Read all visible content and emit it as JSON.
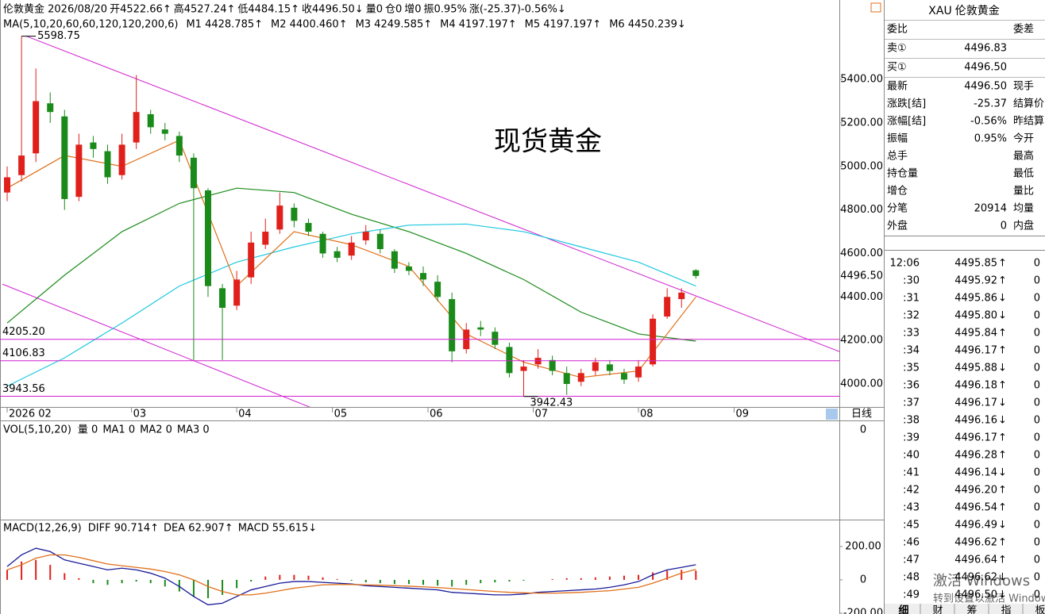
{
  "header": {
    "items": [
      {
        "text": "伦敦黄金 2026/08/20",
        "color": "#000000"
      },
      {
        "text": "开4522.66↑",
        "color": "#e0201b"
      },
      {
        "text": "高4527.24↑",
        "color": "#e0201b"
      },
      {
        "text": "低4484.15↑",
        "color": "#1a8a1a"
      },
      {
        "text": "收4496.50↓",
        "color": "#1a8a1a"
      },
      {
        "text": "量0",
        "color": "#000000"
      },
      {
        "text": "仓0",
        "color": "#000000"
      },
      {
        "text": "增0",
        "color": "#000000"
      },
      {
        "text": "振0.95%",
        "color": "#000000"
      },
      {
        "text": "涨(-25.37)-0.56%↓",
        "color": "#1a8a1a"
      }
    ],
    "ma_label": "MA(5,10,20,60,60,120,120,200,6)",
    "ma_items": [
      {
        "text": "M1 4428.785↑",
        "color": "#1a1a9a"
      },
      {
        "text": "M2 4400.460↑",
        "color": "#e0701b"
      },
      {
        "text": "M3 4249.585↑",
        "color": "#999999"
      },
      {
        "text": "M4 4197.197↑",
        "color": "#8b1a1a"
      },
      {
        "text": "M5 4197.197↑",
        "color": "#1a8a1a"
      },
      {
        "text": "M6 4450.239↓",
        "color": "#1ec8e0"
      }
    ]
  },
  "chart_data": [
    {
      "type": "candlestick",
      "watermark": "现货黄金",
      "period": "日线",
      "up_color": "#e0201b",
      "down_color": "#1a8a1a",
      "x": [
        0,
        3,
        6,
        9,
        12,
        15,
        18,
        21,
        24,
        27,
        30,
        33,
        36,
        39,
        42,
        45,
        48,
        51,
        54,
        57,
        60,
        63,
        66,
        69,
        72,
        75,
        78,
        81,
        84,
        87,
        90,
        93,
        96,
        99,
        102,
        105,
        108,
        111,
        114,
        117,
        120,
        123,
        126,
        129,
        132,
        135,
        138,
        141,
        144
      ],
      "open": [
        4880,
        4960,
        5060,
        5290,
        5230,
        4860,
        5110,
        5070,
        4960,
        5110,
        5240,
        5170,
        5140,
        5040,
        4890,
        4440,
        4360,
        4490,
        4640,
        4710,
        4810,
        4740,
        4690,
        4610,
        4590,
        4660,
        4690,
        4610,
        4540,
        4510,
        4470,
        4390,
        4160,
        4260,
        4240,
        4170,
        4060,
        4090,
        4110,
        4050,
        4010,
        4060,
        4090,
        4050,
        4030,
        4090,
        4310,
        4390,
        4522.66
      ],
      "high": [
        5000,
        5598.75,
        5450,
        5340,
        5260,
        5150,
        5140,
        5100,
        5150,
        5420,
        5260,
        5200,
        5160,
        5060,
        4900,
        4460,
        4520,
        4700,
        4760,
        4880,
        4830,
        4760,
        4700,
        4630,
        4680,
        4730,
        4710,
        4620,
        4560,
        4540,
        4500,
        4420,
        4280,
        4290,
        4260,
        4190,
        4110,
        4160,
        4130,
        4080,
        4070,
        4120,
        4110,
        4070,
        4110,
        4320,
        4440,
        4440,
        4527.24
      ],
      "low": [
        4840,
        4930,
        5020,
        5200,
        4800,
        4840,
        5040,
        4920,
        4940,
        5080,
        5150,
        5120,
        5020,
        4110,
        4400,
        4110,
        4340,
        4460,
        4620,
        4690,
        4720,
        4680,
        4580,
        4560,
        4570,
        4640,
        4600,
        4510,
        4500,
        4450,
        4380,
        4100,
        4140,
        4220,
        4160,
        4030,
        3942.43,
        4070,
        4040,
        3950,
        3990,
        4040,
        4040,
        4000,
        4010,
        4080,
        4300,
        4350,
        4484.15
      ],
      "close": [
        4950,
        5050,
        5300,
        5250,
        4850,
        5100,
        5080,
        4950,
        5100,
        5250,
        5180,
        5150,
        5050,
        4900,
        4450,
        4350,
        4480,
        4650,
        4700,
        4820,
        4750,
        4700,
        4600,
        4580,
        4650,
        4700,
        4620,
        4530,
        4520,
        4480,
        4400,
        4150,
        4250,
        4250,
        4180,
        4050,
        4080,
        4120,
        4060,
        4000,
        4050,
        4100,
        4060,
        4020,
        4080,
        4300,
        4400,
        4420,
        4496.5
      ],
      "series": [
        {
          "color": "#1a8a1a",
          "x": [
            0,
            12,
            24,
            36,
            48,
            60,
            72,
            84,
            96,
            108,
            120,
            132,
            144
          ],
          "values": [
            4280,
            4500,
            4700,
            4830,
            4900,
            4880,
            4780,
            4700,
            4600,
            4480,
            4330,
            4230,
            4197
          ]
        },
        {
          "color": "#1ec8e0",
          "x": [
            0,
            12,
            24,
            36,
            48,
            60,
            72,
            84,
            96,
            108,
            120,
            132,
            144
          ],
          "values": [
            3990,
            4120,
            4280,
            4450,
            4560,
            4630,
            4690,
            4730,
            4735,
            4700,
            4630,
            4560,
            4450
          ]
        },
        {
          "color": "#e0701b",
          "x": [
            0,
            12,
            24,
            36,
            48,
            60,
            72,
            84,
            96,
            108,
            120,
            132,
            144
          ],
          "values": [
            4900,
            5050,
            5000,
            5120,
            4450,
            4700,
            4640,
            4540,
            4230,
            4100,
            4030,
            4060,
            4400
          ]
        }
      ],
      "xlim": [
        -1,
        174
      ],
      "xticks": [
        {
          "value": 0,
          "label": "2026 02"
        },
        {
          "value": 26,
          "label": "03"
        },
        {
          "value": 48,
          "label": "04"
        },
        {
          "value": 68,
          "label": "05"
        },
        {
          "value": 88,
          "label": "06"
        },
        {
          "value": 110,
          "label": "07"
        },
        {
          "value": 132,
          "label": "08"
        },
        {
          "value": 152,
          "label": "09"
        }
      ],
      "ylim": [
        3887,
        5692
      ],
      "yticks": [
        {
          "value": 4000,
          "label": "4000.00"
        },
        {
          "value": 4200,
          "label": "4200.00"
        },
        {
          "value": 4400,
          "label": "4400.00"
        },
        {
          "value": 4600,
          "label": "4600.00"
        },
        {
          "value": 4800,
          "label": "4800.00"
        },
        {
          "value": 5000,
          "label": "5000.00"
        },
        {
          "value": 5200,
          "label": "5200.00"
        },
        {
          "value": 5400,
          "label": "5400.00"
        }
      ],
      "last_price": {
        "value": 4496.5,
        "label": "4496.50"
      },
      "annotations": [
        {
          "x": 3,
          "value": 5598.75,
          "label": "5598.75"
        },
        {
          "x": 108,
          "value": 3942.43,
          "label": "3942.43"
        }
      ],
      "hlines": [
        {
          "value": 4205.2,
          "label": "4205.20"
        },
        {
          "value": 4106.83,
          "label": "4106.83"
        },
        {
          "value": 3943.56,
          "label": "3943.56"
        }
      ],
      "trendlines": [
        {
          "x": [
            4,
            174
          ],
          "y": [
            5598.75,
            4149
          ]
        },
        {
          "x": [
            -1,
            64
          ],
          "y": [
            4459,
            3887
          ]
        }
      ]
    },
    {
      "type": "volume",
      "title": "VOL(5,10,20)",
      "items": [
        {
          "text": "量 0",
          "color": "#1a1a9a"
        },
        {
          "text": "MA1 0",
          "color": "#e0701b"
        },
        {
          "text": "MA2 0",
          "color": "#999999"
        },
        {
          "text": "MA3 0",
          "color": "#8b1a1a"
        }
      ],
      "yticks": [
        0
      ]
    },
    {
      "type": "macd",
      "title": "MACD(12,26,9)",
      "items": [
        {
          "text": "DIFF 90.714↑",
          "color": "#1a1a9a"
        },
        {
          "text": "DEA 62.907↑",
          "color": "#e0701b"
        },
        {
          "text": "MACD 55.615↓",
          "color": "#999999"
        }
      ],
      "x": [
        0,
        3,
        6,
        9,
        12,
        15,
        18,
        21,
        24,
        27,
        30,
        33,
        36,
        39,
        42,
        45,
        48,
        51,
        54,
        57,
        60,
        63,
        66,
        69,
        72,
        75,
        78,
        81,
        84,
        87,
        90,
        93,
        96,
        99,
        102,
        105,
        108,
        111,
        114,
        117,
        120,
        123,
        126,
        129,
        132,
        135,
        138,
        141,
        144
      ],
      "values": [
        60,
        110,
        120,
        90,
        40,
        10,
        -20,
        -30,
        -20,
        -10,
        -20,
        -40,
        -70,
        -100,
        -110,
        -90,
        -50,
        -10,
        20,
        30,
        30,
        25,
        15,
        5,
        -5,
        -15,
        -20,
        -25,
        -25,
        -30,
        -35,
        -40,
        -30,
        -20,
        -15,
        -10,
        -5,
        0,
        5,
        10,
        10,
        15,
        20,
        25,
        30,
        45,
        55,
        60,
        55.615
      ],
      "up_color": "#e0201b",
      "down_color": "#1a8a1a",
      "series": [
        {
          "color": "#1a1a9a",
          "values": [
            80,
            150,
            190,
            170,
            120,
            100,
            80,
            60,
            70,
            60,
            40,
            10,
            -40,
            -100,
            -150,
            -140,
            -100,
            -60,
            -40,
            -20,
            -10,
            -10,
            -15,
            -20,
            -25,
            -35,
            -40,
            -45,
            -50,
            -55,
            -60,
            -75,
            -80,
            -85,
            -90,
            -90,
            -85,
            -75,
            -70,
            -65,
            -60,
            -55,
            -45,
            -30,
            -10,
            30,
            60,
            75,
            90.714
          ]
        },
        {
          "color": "#e0701b",
          "values": [
            60,
            90,
            130,
            150,
            150,
            135,
            115,
            95,
            85,
            75,
            65,
            50,
            30,
            0,
            -40,
            -70,
            -90,
            -90,
            -80,
            -65,
            -50,
            -40,
            -30,
            -28,
            -28,
            -30,
            -32,
            -35,
            -38,
            -42,
            -46,
            -52,
            -58,
            -64,
            -70,
            -75,
            -78,
            -80,
            -80,
            -78,
            -75,
            -70,
            -65,
            -55,
            -45,
            -20,
            10,
            40,
            62.907
          ]
        }
      ],
      "xlim": [
        -1,
        174
      ],
      "ylim": [
        -205,
        357
      ],
      "yticks": [
        {
          "value": -200,
          "label": "-200.00"
        },
        0,
        {
          "value": 200,
          "label": "200.00"
        }
      ]
    }
  ],
  "quote": {
    "symbol": "XAU",
    "name": "伦敦黄金",
    "rows": [
      {
        "label": "委比",
        "right": "委差"
      },
      {
        "label": "卖①",
        "value": "4496.83",
        "color": "#1a8a1a"
      },
      {
        "label": "买①",
        "value": "4496.50",
        "color": "#1a8a1a"
      },
      {
        "label": "最新",
        "value": "4496.50",
        "color": "#1a8a1a",
        "right": "现手"
      },
      {
        "label": "涨跌[结]",
        "value": "-25.37",
        "color": "#1a8a1a",
        "right": "结算价"
      },
      {
        "label": "涨幅[结]",
        "value": "-0.56%",
        "color": "#1a8a1a",
        "right": "昨结算"
      },
      {
        "label": "振幅",
        "value": "0.95%",
        "color": "#000000",
        "right": "今开"
      },
      {
        "label": "总手",
        "right": "最高"
      },
      {
        "label": "持仓量",
        "right": "最低"
      },
      {
        "label": "增仓",
        "right": "量比"
      },
      {
        "label": "分笔",
        "value": "20914",
        "color": "#000000",
        "right": "均量"
      },
      {
        "label": "外盘",
        "value": "0",
        "color": "#e0201b",
        "right": "内盘"
      }
    ],
    "ticks": [
      {
        "t": "12:06",
        "p": "4495.85",
        "d": "↑",
        "v": "0"
      },
      {
        "t": ":30",
        "p": "4495.92",
        "d": "↑",
        "v": "0"
      },
      {
        "t": ":31",
        "p": "4495.86",
        "d": "↓",
        "v": "0"
      },
      {
        "t": ":32",
        "p": "4495.80",
        "d": "↓",
        "v": "0"
      },
      {
        "t": ":33",
        "p": "4495.84",
        "d": "↑",
        "v": "0"
      },
      {
        "t": ":34",
        "p": "4496.17",
        "d": "↑",
        "v": "0"
      },
      {
        "t": ":35",
        "p": "4495.88",
        "d": "↓",
        "v": "0"
      },
      {
        "t": ":36",
        "p": "4496.18",
        "d": "↑",
        "v": "0"
      },
      {
        "t": ":37",
        "p": "4496.17",
        "d": "↓",
        "v": "0"
      },
      {
        "t": ":38",
        "p": "4496.16",
        "d": "↓",
        "v": "0"
      },
      {
        "t": ":39",
        "p": "4496.17",
        "d": "↑",
        "v": "0"
      },
      {
        "t": ":40",
        "p": "4496.28",
        "d": "↑",
        "v": "0"
      },
      {
        "t": ":41",
        "p": "4496.14",
        "d": "↓",
        "v": "0"
      },
      {
        "t": ":42",
        "p": "4496.20",
        "d": "↑",
        "v": "0"
      },
      {
        "t": ":43",
        "p": "4496.54",
        "d": "↑",
        "v": "0"
      },
      {
        "t": ":45",
        "p": "4496.49",
        "d": "↓",
        "v": "0"
      },
      {
        "t": ":46",
        "p": "4496.62",
        "d": "↑",
        "v": "0"
      },
      {
        "t": ":47",
        "p": "4496.64",
        "d": "↑",
        "v": "0"
      },
      {
        "t": ":48",
        "p": "4496.62",
        "d": "↓",
        "v": "0"
      },
      {
        "t": ":49",
        "p": "4496.50",
        "d": "↓",
        "v": "0"
      }
    ],
    "tabs": [
      "细",
      "财",
      "筹",
      "指",
      "板"
    ]
  },
  "os_watermark": [
    "激活 Windows",
    "转到设置以激活 Windows"
  ]
}
